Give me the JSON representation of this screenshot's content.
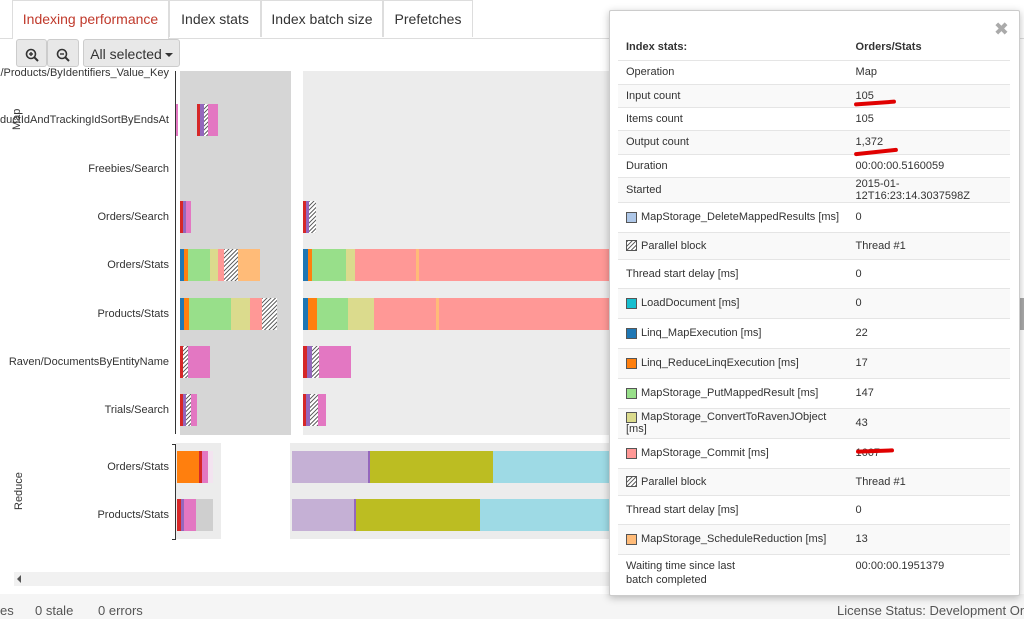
{
  "tabs": [
    {
      "label": "Indexing performance",
      "active": true
    },
    {
      "label": "Index stats",
      "active": false
    },
    {
      "label": "Index batch size",
      "active": false
    },
    {
      "label": "Prefetches",
      "active": false
    }
  ],
  "toolbar": {
    "zoom_in_icon": "zoom-in-icon",
    "zoom_out_icon": "zoom-out-icon",
    "select_label": "All selected"
  },
  "chart": {
    "map_label": "Map",
    "reduce_label": "Reduce",
    "map_rows": [
      "l/Products/ByIdentifiers_Value_Key",
      "ductIdAndTrackingIdSortByEndsAt",
      "Freebies/Search",
      "Orders/Search",
      "Orders/Stats",
      "Products/Stats",
      "Raven/DocumentsByEntityName",
      "Trials/Search"
    ],
    "reduce_rows": [
      "Orders/Stats",
      "Products/Stats"
    ],
    "colors": {
      "load_document": "#17becf",
      "linq_map": "#1f77b4",
      "linq_reduce": "#ff7f0e",
      "put_mapped": "#98df8a",
      "convert": "#dbdb8d",
      "commit": "#ff9896",
      "schedule_reduction": "#ffbb78",
      "reduce_a": "#c5b0d5",
      "reduce_b": "#bcbd22",
      "reduce_c": "#9edae5",
      "pink": "#e377c2",
      "purple": "#9467bd",
      "red": "#d62728"
    }
  },
  "footer": {
    "left_cut": "es",
    "stale": "0 stale",
    "errors": "0 errors",
    "license": "License Status: Development On"
  },
  "popup": {
    "close_icon": "close-icon",
    "header": {
      "label": "Index stats:",
      "value": "Orders/Stats"
    },
    "rows": [
      {
        "label": "Operation",
        "value": "Map"
      },
      {
        "label": "Input count",
        "value": "105"
      },
      {
        "label": "Items count",
        "value": "105"
      },
      {
        "label": "Output count",
        "value": "1,372"
      },
      {
        "label": "Duration",
        "value": "00:00:00.5160059"
      },
      {
        "label": "Started",
        "value": "2015-01-12T16:23:14.3037598Z"
      },
      {
        "label": "MapStorage_DeleteMappedResults [ms]",
        "value": "0",
        "swatch": "#aec7e8"
      },
      {
        "label": "Parallel block",
        "value": "Thread #1",
        "swatch": "hatch"
      },
      {
        "label": "Thread start delay [ms]",
        "value": "0"
      },
      {
        "label": "LoadDocument [ms]",
        "value": "0",
        "swatch": "#17becf"
      },
      {
        "label": "Linq_MapExecution [ms]",
        "value": "22",
        "swatch": "#1f77b4"
      },
      {
        "label": "Linq_ReduceLinqExecution [ms]",
        "value": "17",
        "swatch": "#ff7f0e"
      },
      {
        "label": "MapStorage_PutMappedResult [ms]",
        "value": "147",
        "swatch": "#98df8a"
      },
      {
        "label": "MapStorage_ConvertToRavenJObject [ms]",
        "value": "43",
        "swatch": "#dbdb8d"
      },
      {
        "label": "MapStorage_Commit [ms]",
        "value": "1667",
        "swatch": "#ff9896"
      },
      {
        "label": "Parallel block",
        "value": "Thread #1",
        "swatch": "hatch"
      },
      {
        "label": "Thread start delay [ms]",
        "value": "0"
      },
      {
        "label": "MapStorage_ScheduleReduction [ms]",
        "value": "13",
        "swatch": "#ffbb78"
      },
      {
        "label": "Waiting time since last batch completed",
        "value": "00:00:00.1951379"
      }
    ]
  }
}
